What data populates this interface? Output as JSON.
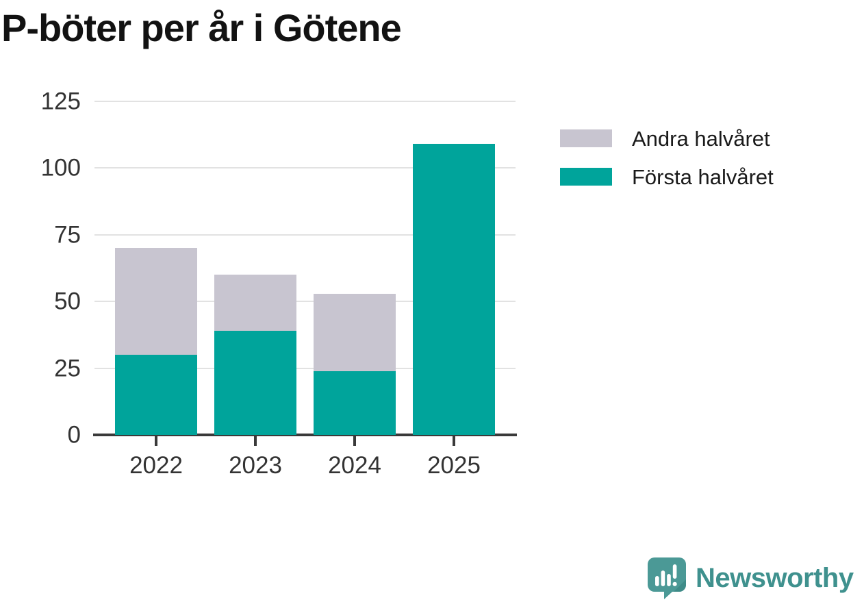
{
  "title": "P-böter per år i Götene",
  "chart_data": {
    "type": "bar",
    "stacked": true,
    "title": "P-böter per år i Götene",
    "xlabel": "",
    "ylabel": "",
    "categories": [
      "2022",
      "2023",
      "2024",
      "2025"
    ],
    "series": [
      {
        "name": "Första halvåret",
        "color": "#00a49b",
        "values": [
          30,
          39,
          24,
          109
        ]
      },
      {
        "name": "Andra halvåret",
        "color": "#c8c5d0",
        "values": [
          40,
          21,
          29,
          0
        ]
      }
    ],
    "totals": [
      70,
      60,
      53,
      109
    ],
    "yticks": [
      0,
      25,
      50,
      75,
      100,
      125
    ],
    "ylim": [
      0,
      125
    ],
    "grid": "horizontal",
    "gridline_color": "#e2e2e2",
    "axis_color": "#3a3a3a",
    "tick_label_color": "#333333",
    "legend_position": "upper-right-outside",
    "legend_order": [
      "Andra halvåret",
      "Första halvåret"
    ]
  },
  "legend": {
    "items": [
      {
        "label": "Andra halvåret",
        "color": "#c8c5d0"
      },
      {
        "label": "Första halvåret",
        "color": "#00a49b"
      }
    ]
  },
  "branding": {
    "logo_text": "Newsworthy",
    "logo_text_color": "#3f918e",
    "logo_icon": "newsworthy-speech-bubble-barchart-icon",
    "logo_icon_color": "#4b9996"
  }
}
